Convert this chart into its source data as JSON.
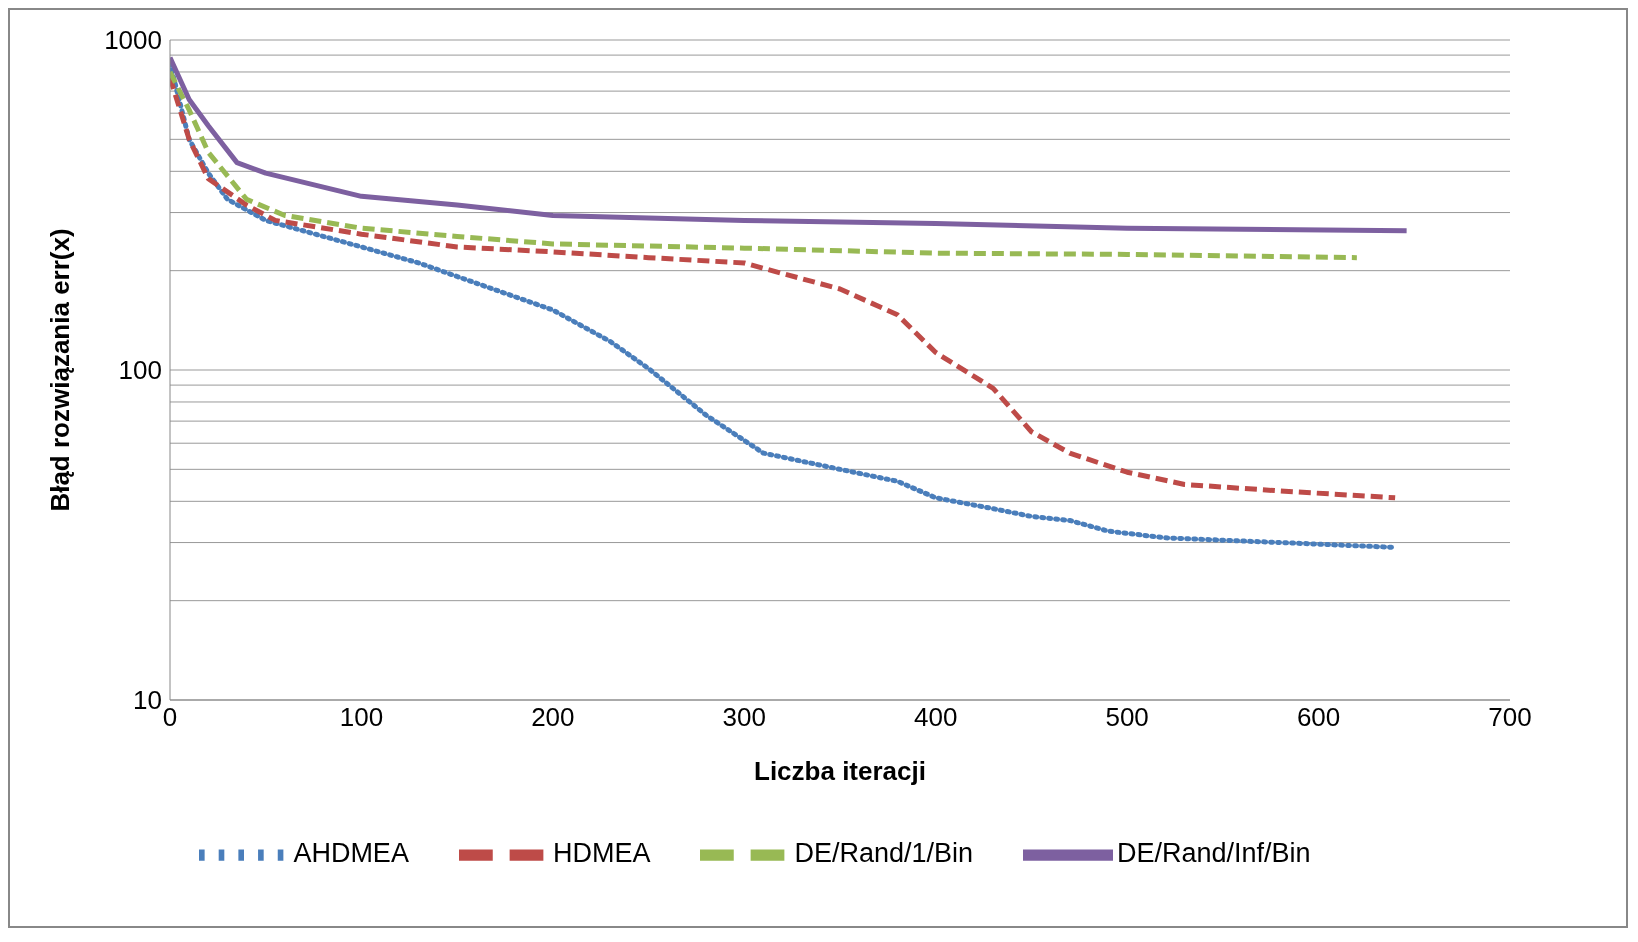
{
  "chart_data": {
    "type": "line",
    "xlabel": "Liczba iteracji",
    "ylabel": "Błąd rozwiązania  err(x)",
    "log": "y",
    "grid": "y",
    "legend": "bottom",
    "marker": "none",
    "xlim": [
      0,
      700
    ],
    "xticks": [
      0,
      100,
      200,
      300,
      400,
      500,
      600,
      700
    ],
    "ylim": [
      10,
      1000
    ],
    "yticks": [
      10,
      {
        "value": 20,
        "label": null
      },
      {
        "value": 30,
        "label": null
      },
      {
        "value": 40,
        "label": null
      },
      {
        "value": 50,
        "label": null
      },
      {
        "value": 60,
        "label": null
      },
      {
        "value": 70,
        "label": null
      },
      {
        "value": 80,
        "label": null
      },
      {
        "value": 90,
        "label": null
      },
      100,
      {
        "value": 200,
        "label": null
      },
      {
        "value": 300,
        "label": null
      },
      {
        "value": 400,
        "label": null
      },
      {
        "value": 500,
        "label": null
      },
      {
        "value": 600,
        "label": null
      },
      {
        "value": 700,
        "label": null
      },
      {
        "value": 800,
        "label": null
      },
      {
        "value": 900,
        "label": null
      },
      1000
    ],
    "series": [
      {
        "name": "AHDMEA",
        "color": "#4a7ebb",
        "line_style": "dotted",
        "x": [
          0,
          10,
          20,
          30,
          50,
          100,
          130,
          150,
          200,
          230,
          250,
          280,
          310,
          350,
          380,
          400,
          430,
          450,
          470,
          490,
          520,
          580,
          640
        ],
        "values": [
          850,
          500,
          395,
          329,
          284,
          236,
          211,
          192,
          152,
          122,
          101,
          73,
          56,
          50,
          46,
          41,
          38,
          36,
          35,
          32.5,
          31,
          30,
          29
        ]
      },
      {
        "name": "HDMEA",
        "color": "#be4b48",
        "line_style": "dashed",
        "x": [
          0,
          10,
          20,
          40,
          55,
          100,
          150,
          200,
          250,
          300,
          320,
          350,
          380,
          400,
          430,
          450,
          470,
          500,
          530,
          580,
          640
        ],
        "values": [
          770,
          500,
          380,
          316,
          284,
          258,
          236,
          228,
          219,
          211,
          196,
          176,
          147,
          113,
          88,
          65,
          56,
          49,
          45,
          43,
          41
        ]
      },
      {
        "name": "DE/Rand/1/Bin",
        "color": "#98b954",
        "line_style": "dashed",
        "x": [
          0,
          10,
          20,
          40,
          60,
          100,
          150,
          200,
          300,
          400,
          500,
          620
        ],
        "values": [
          800,
          614,
          457,
          329,
          294,
          269,
          254,
          241,
          234,
          226,
          224,
          219
        ]
      },
      {
        "name": "DE/Rand/Inf/Bin",
        "color": "#7d60a0",
        "line_style": "solid",
        "x": [
          0,
          10,
          20,
          35,
          50,
          100,
          150,
          200,
          300,
          400,
          500,
          646
        ],
        "values": [
          885,
          660,
          550,
          425,
          395,
          336,
          316,
          294,
          284,
          278,
          269,
          264
        ]
      }
    ]
  }
}
